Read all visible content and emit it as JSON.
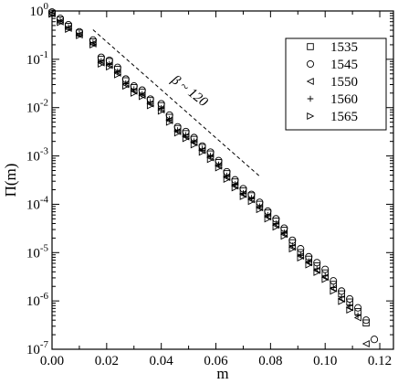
{
  "chart_data": {
    "type": "scatter",
    "title": "",
    "xlabel": "m",
    "ylabel": "Π(m)",
    "xlim": [
      0.0,
      0.125
    ],
    "ylim": [
      1e-07,
      1
    ],
    "yscale": "log",
    "grid": false,
    "legend_position": "top-right",
    "x_ticks": [
      {
        "value": 0.0,
        "label": "0.00"
      },
      {
        "value": 0.02,
        "label": "0.02"
      },
      {
        "value": 0.04,
        "label": "0.04"
      },
      {
        "value": 0.06,
        "label": "0.06"
      },
      {
        "value": 0.08,
        "label": "0.08"
      },
      {
        "value": 0.1,
        "label": "0.10"
      },
      {
        "value": 0.12,
        "label": "0.12"
      }
    ],
    "y_ticks": [
      {
        "value": 1,
        "base": "10",
        "exp": "0"
      },
      {
        "value": 0.1,
        "base": "10",
        "exp": "-1"
      },
      {
        "value": 0.01,
        "base": "10",
        "exp": "-2"
      },
      {
        "value": 0.001,
        "base": "10",
        "exp": "-3"
      },
      {
        "value": 0.0001,
        "base": "10",
        "exp": "-4"
      },
      {
        "value": 1e-05,
        "base": "10",
        "exp": "-5"
      },
      {
        "value": 1e-06,
        "base": "10",
        "exp": "-6"
      },
      {
        "value": 1e-07,
        "base": "10",
        "exp": "-7"
      }
    ],
    "annotation": {
      "text": "β ~ 120",
      "line": {
        "x": [
          0.015,
          0.076
        ],
        "y": [
          0.41,
          0.00038
        ],
        "style": "dashed"
      }
    },
    "series": [
      {
        "name": "1535",
        "marker": "square",
        "x": [
          0.0,
          0.003,
          0.006,
          0.01,
          0.015,
          0.018,
          0.021,
          0.024,
          0.027,
          0.03,
          0.033,
          0.036,
          0.04,
          0.043,
          0.046,
          0.049,
          0.052,
          0.055,
          0.058,
          0.061,
          0.064,
          0.067,
          0.07,
          0.073,
          0.076,
          0.079,
          0.082,
          0.085,
          0.088,
          0.091,
          0.094,
          0.097,
          0.1,
          0.103,
          0.106,
          0.109,
          0.112,
          0.115
        ],
        "y": [
          0.9,
          0.65,
          0.48,
          0.35,
          0.23,
          0.1,
          0.09,
          0.062,
          0.036,
          0.026,
          0.021,
          0.014,
          0.011,
          0.0063,
          0.0037,
          0.0029,
          0.0022,
          0.0015,
          0.0011,
          0.00073,
          0.00043,
          0.00029,
          0.00019,
          0.00015,
          0.0001,
          6.6e-05,
          4.5e-05,
          2.9e-05,
          1.6e-05,
          1e-05,
          7.3e-06,
          5.3e-06,
          3.8e-06,
          2.2e-06,
          1.4e-06,
          9.5e-07,
          6e-07,
          3.5e-07
        ]
      },
      {
        "name": "1545",
        "marker": "circle",
        "x": [
          0.0,
          0.003,
          0.006,
          0.01,
          0.015,
          0.018,
          0.021,
          0.024,
          0.027,
          0.03,
          0.033,
          0.036,
          0.04,
          0.043,
          0.046,
          0.049,
          0.052,
          0.055,
          0.058,
          0.061,
          0.064,
          0.067,
          0.07,
          0.073,
          0.076,
          0.079,
          0.082,
          0.085,
          0.088,
          0.091,
          0.094,
          0.097,
          0.1,
          0.103,
          0.106,
          0.109,
          0.112,
          0.115,
          0.118
        ],
        "y": [
          0.95,
          0.7,
          0.52,
          0.37,
          0.25,
          0.11,
          0.095,
          0.068,
          0.039,
          0.028,
          0.023,
          0.015,
          0.012,
          0.007,
          0.004,
          0.0032,
          0.0024,
          0.0016,
          0.0012,
          0.0008,
          0.00047,
          0.00032,
          0.00021,
          0.00016,
          0.00011,
          7.2e-05,
          5e-05,
          3.2e-05,
          1.8e-05,
          1.2e-05,
          8.2e-06,
          6.2e-06,
          4.5e-06,
          2.6e-06,
          1.6e-06,
          1.1e-06,
          7.2e-07,
          4e-07,
          1.6e-07
        ]
      },
      {
        "name": "1550",
        "marker": "triangle-left",
        "x": [
          0.0,
          0.003,
          0.006,
          0.01,
          0.015,
          0.018,
          0.021,
          0.024,
          0.027,
          0.03,
          0.033,
          0.036,
          0.04,
          0.043,
          0.046,
          0.049,
          0.052,
          0.055,
          0.058,
          0.061,
          0.064,
          0.067,
          0.07,
          0.073,
          0.076,
          0.079,
          0.082,
          0.085,
          0.088,
          0.091,
          0.094,
          0.097,
          0.1,
          0.103,
          0.106,
          0.109,
          0.112,
          0.115
        ],
        "y": [
          0.88,
          0.6,
          0.44,
          0.32,
          0.21,
          0.085,
          0.075,
          0.052,
          0.03,
          0.022,
          0.018,
          0.012,
          0.009,
          0.0054,
          0.0032,
          0.0025,
          0.0019,
          0.0013,
          0.00092,
          0.00062,
          0.00036,
          0.00024,
          0.00016,
          0.000125,
          8.5e-05,
          5.5e-05,
          3.7e-05,
          2.4e-05,
          1.3e-05,
          8.5e-06,
          6.2e-06,
          4.3e-06,
          3.1e-06,
          1.8e-06,
          1.1e-06,
          7.3e-07,
          4.5e-07,
          1.3e-07
        ]
      },
      {
        "name": "1560",
        "marker": "plus",
        "x": [
          0.0,
          0.003,
          0.006,
          0.01,
          0.015,
          0.018,
          0.021,
          0.024,
          0.027,
          0.03,
          0.033,
          0.036,
          0.04,
          0.043,
          0.046,
          0.049,
          0.052,
          0.055,
          0.058,
          0.061,
          0.064,
          0.067,
          0.07,
          0.073,
          0.076,
          0.079,
          0.082,
          0.085,
          0.088,
          0.091,
          0.094,
          0.097,
          0.1,
          0.103,
          0.106,
          0.109,
          0.112
        ],
        "y": [
          0.92,
          0.63,
          0.46,
          0.34,
          0.22,
          0.092,
          0.08,
          0.056,
          0.032,
          0.024,
          0.019,
          0.013,
          0.0098,
          0.0058,
          0.0034,
          0.0027,
          0.002,
          0.0014,
          0.001,
          0.00066,
          0.00039,
          0.00026,
          0.00017,
          0.000135,
          9e-05,
          6e-05,
          4e-05,
          2.6e-05,
          1.4e-05,
          9.2e-06,
          6.6e-06,
          4.6e-06,
          3.3e-06,
          1.9e-06,
          1.2e-06,
          8e-07,
          5e-07
        ]
      },
      {
        "name": "1565",
        "marker": "triangle-right",
        "x": [
          0.0,
          0.003,
          0.006,
          0.01,
          0.015,
          0.018,
          0.021,
          0.024,
          0.027,
          0.03,
          0.033,
          0.036,
          0.04,
          0.043,
          0.046,
          0.049,
          0.052,
          0.055,
          0.058,
          0.061,
          0.064,
          0.067,
          0.07,
          0.073,
          0.076,
          0.079,
          0.082,
          0.085,
          0.088,
          0.091,
          0.094,
          0.097,
          0.1,
          0.103,
          0.106,
          0.109
        ],
        "y": [
          0.86,
          0.58,
          0.42,
          0.31,
          0.2,
          0.08,
          0.07,
          0.048,
          0.028,
          0.02,
          0.017,
          0.011,
          0.0085,
          0.005,
          0.003,
          0.0023,
          0.0017,
          0.0012,
          0.00085,
          0.00057,
          0.00033,
          0.00022,
          0.000145,
          0.000115,
          7.8e-05,
          5e-05,
          3.4e-05,
          2.2e-05,
          1.2e-05,
          7.8e-06,
          5.6e-06,
          3.9e-06,
          2.8e-06,
          1.6e-06,
          9.8e-07,
          6.5e-07
        ]
      }
    ]
  }
}
